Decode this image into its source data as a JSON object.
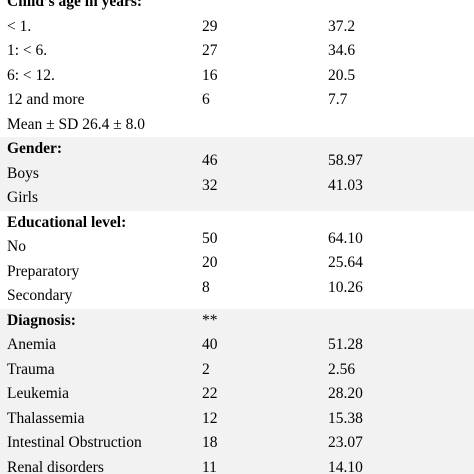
{
  "age": {
    "heading": "Child’s age in years:",
    "rows": [
      {
        "label": "< 1.",
        "n": "29",
        "pct": "37.2"
      },
      {
        "label": "1: < 6.",
        "n": "27",
        "pct": "34.6"
      },
      {
        "label": "6: < 12.",
        "n": "16",
        "pct": "20.5"
      },
      {
        "label": "12 and more",
        "n": "6",
        "pct": "7.7"
      }
    ],
    "mean": "Mean ± SD 26.4 ± 8.0"
  },
  "gender": {
    "heading": "Gender:",
    "labels": [
      "Boys",
      "Girls"
    ],
    "values": [
      {
        "n": "46",
        "pct": "58.97"
      },
      {
        "n": "32",
        "pct": "41.03"
      }
    ]
  },
  "education": {
    "heading": "Educational level:",
    "labels": [
      "No",
      "Preparatory",
      "Secondary"
    ],
    "values": [
      {
        "n": "50",
        "pct": "64.10"
      },
      {
        "n": "20",
        "pct": "25.64"
      },
      {
        "n": "8",
        "pct": "10.26"
      }
    ]
  },
  "diagnosis": {
    "heading": "Diagnosis:",
    "marker": "**",
    "rows": [
      {
        "label": "Anemia",
        "n": "40",
        "pct": "51.28"
      },
      {
        "label": "Trauma",
        "n": "2",
        "pct": "2.56"
      },
      {
        "label": "Leukemia",
        "n": "22",
        "pct": "28.20"
      },
      {
        "label": "Thalassemia",
        "n": "12",
        "pct": "15.38"
      },
      {
        "label": "Intestinal Obstruction",
        "n": "18",
        "pct": "23.07"
      },
      {
        "label": "Renal disorders",
        "n": "11",
        "pct": "14.10"
      }
    ]
  }
}
